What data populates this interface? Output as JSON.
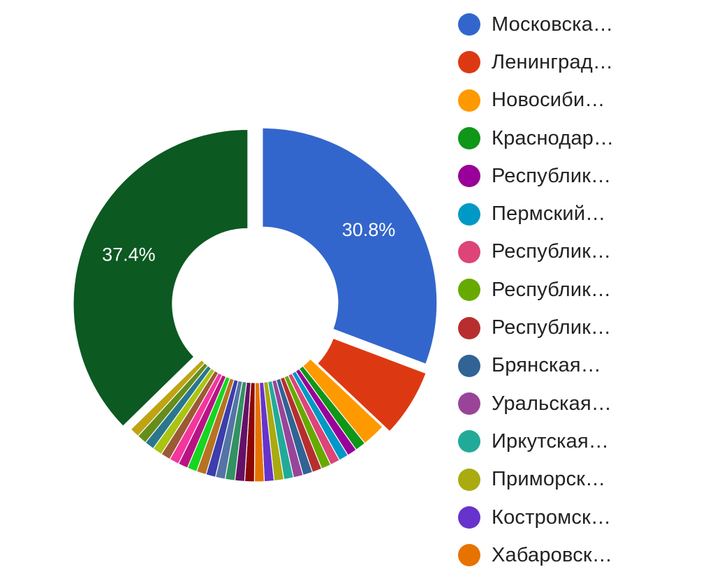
{
  "chart_data": {
    "type": "pie",
    "donut": true,
    "title": "",
    "legend_position": "right",
    "series": [
      {
        "name": "Московска…",
        "value": 30.8,
        "color": "#3366cc",
        "label": "30.8%"
      },
      {
        "name": "Ленинград…",
        "value": 6.3,
        "color": "#dc3912"
      },
      {
        "name": "Новосиби…",
        "value": 2.2,
        "color": "#ff9900"
      },
      {
        "name": "Краснодар…",
        "value": 1.0,
        "color": "#109618"
      },
      {
        "name": "Республик…",
        "value": 0.9,
        "color": "#990099"
      },
      {
        "name": "Пермский…",
        "value": 0.9,
        "color": "#0099c6"
      },
      {
        "name": "Республик…",
        "value": 0.9,
        "color": "#dd4477"
      },
      {
        "name": "Республик…",
        "value": 0.9,
        "color": "#66aa00"
      },
      {
        "name": "Республик…",
        "value": 0.9,
        "color": "#b82e2e"
      },
      {
        "name": "Брянская…",
        "value": 0.9,
        "color": "#316395"
      },
      {
        "name": "Уральская…",
        "value": 0.9,
        "color": "#994499"
      },
      {
        "name": "Иркутская…",
        "value": 0.9,
        "color": "#22aa99"
      },
      {
        "name": "Приморск…",
        "value": 0.9,
        "color": "#aaaa11"
      },
      {
        "name": "Костромск…",
        "value": 0.9,
        "color": "#6633cc"
      },
      {
        "name": "Хабаровск…",
        "value": 0.9,
        "color": "#e67300"
      },
      {
        "name": "",
        "value": 0.9,
        "color": "#8b0707"
      },
      {
        "name": "",
        "value": 0.9,
        "color": "#651067"
      },
      {
        "name": "",
        "value": 0.9,
        "color": "#329262"
      },
      {
        "name": "",
        "value": 0.9,
        "color": "#5574a6"
      },
      {
        "name": "",
        "value": 0.9,
        "color": "#3b3eac"
      },
      {
        "name": "",
        "value": 0.9,
        "color": "#b77322"
      },
      {
        "name": "",
        "value": 0.9,
        "color": "#16d620"
      },
      {
        "name": "",
        "value": 0.9,
        "color": "#b91383"
      },
      {
        "name": "",
        "value": 0.9,
        "color": "#f4359e"
      },
      {
        "name": "",
        "value": 0.9,
        "color": "#9c5935"
      },
      {
        "name": "",
        "value": 0.9,
        "color": "#a9c413"
      },
      {
        "name": "",
        "value": 0.9,
        "color": "#2a778d"
      },
      {
        "name": "",
        "value": 0.9,
        "color": "#668d1c"
      },
      {
        "name": "",
        "value": 0.9,
        "color": "#bea413"
      },
      {
        "name": "",
        "value": 37.4,
        "color": "#0c5922",
        "label": "37.4%"
      }
    ]
  }
}
